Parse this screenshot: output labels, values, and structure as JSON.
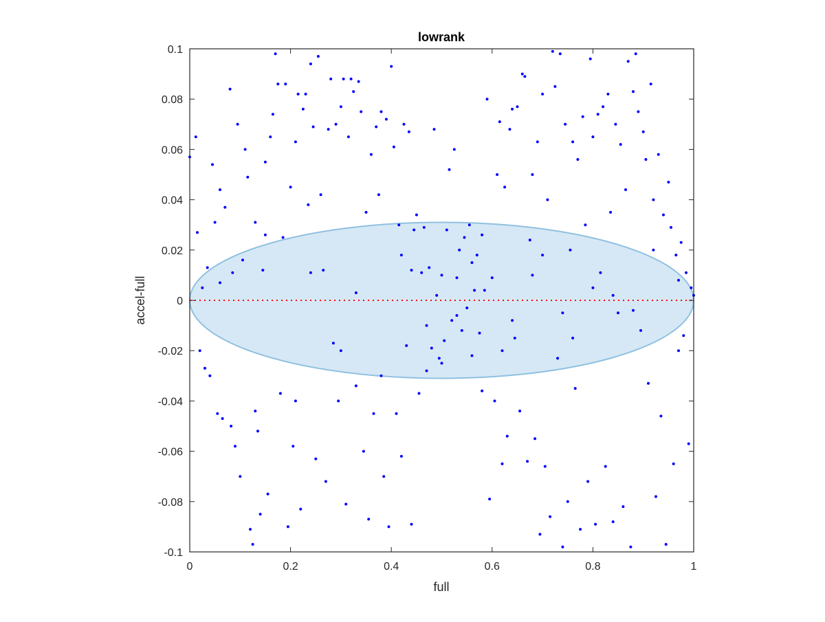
{
  "chart_data": {
    "type": "scatter",
    "title": "lowrank",
    "xlabel": "full",
    "ylabel": "accel-full",
    "xlim": [
      0,
      1
    ],
    "ylim": [
      -0.1,
      0.1
    ],
    "xticks": [
      0,
      0.2,
      0.4,
      0.6,
      0.8,
      1
    ],
    "xtick_labels": [
      "0",
      "0.2",
      "0.4",
      "0.6",
      "0.8",
      "1"
    ],
    "yticks": [
      -0.1,
      -0.08,
      -0.06,
      -0.04,
      -0.02,
      0,
      0.02,
      0.04,
      0.06,
      0.08,
      0.1
    ],
    "ytick_labels": [
      "-0.1",
      "-0.08",
      "-0.06",
      "-0.04",
      "-0.02",
      "0",
      "0.02",
      "0.04",
      "0.06",
      "0.08",
      "0.1"
    ],
    "grid": false,
    "colors": {
      "points": "#0000ff",
      "ellipse_fill": "#d6e8f5",
      "ellipse_stroke": "#8fc0e0",
      "zero_line": "#ff0000",
      "axes": "#262626"
    },
    "ellipse": {
      "center_x": 0.5,
      "center_y": 0.0,
      "half_width_x": 0.5,
      "half_height_y": 0.031
    },
    "zero_line": {
      "y": 0,
      "style": "dotted"
    },
    "points": [
      [
        0.0,
        0.057
      ],
      [
        0.012,
        0.065
      ],
      [
        0.015,
        0.027
      ],
      [
        0.02,
        -0.02
      ],
      [
        0.025,
        0.005
      ],
      [
        0.03,
        -0.027
      ],
      [
        0.035,
        0.013
      ],
      [
        0.04,
        -0.03
      ],
      [
        0.045,
        0.054
      ],
      [
        0.05,
        0.031
      ],
      [
        0.055,
        -0.045
      ],
      [
        0.06,
        0.044
      ],
      [
        0.065,
        -0.047
      ],
      [
        0.07,
        0.037
      ],
      [
        0.08,
        0.084
      ],
      [
        0.082,
        -0.05
      ],
      [
        0.085,
        0.011
      ],
      [
        0.09,
        -0.058
      ],
      [
        0.095,
        0.07
      ],
      [
        0.1,
        -0.07
      ],
      [
        0.105,
        0.016
      ],
      [
        0.11,
        0.06
      ],
      [
        0.115,
        0.049
      ],
      [
        0.12,
        -0.091
      ],
      [
        0.125,
        -0.097
      ],
      [
        0.13,
        0.031
      ],
      [
        0.135,
        -0.052
      ],
      [
        0.14,
        -0.085
      ],
      [
        0.145,
        0.012
      ],
      [
        0.15,
        0.055
      ],
      [
        0.155,
        -0.077
      ],
      [
        0.16,
        0.065
      ],
      [
        0.165,
        0.074
      ],
      [
        0.17,
        0.098
      ],
      [
        0.175,
        0.086
      ],
      [
        0.18,
        -0.037
      ],
      [
        0.185,
        0.025
      ],
      [
        0.19,
        0.086
      ],
      [
        0.195,
        -0.09
      ],
      [
        0.2,
        0.045
      ],
      [
        0.205,
        -0.058
      ],
      [
        0.21,
        0.063
      ],
      [
        0.215,
        0.082
      ],
      [
        0.22,
        -0.083
      ],
      [
        0.225,
        0.076
      ],
      [
        0.23,
        0.082
      ],
      [
        0.235,
        0.038
      ],
      [
        0.24,
        0.094
      ],
      [
        0.245,
        0.069
      ],
      [
        0.25,
        -0.063
      ],
      [
        0.255,
        0.097
      ],
      [
        0.26,
        0.042
      ],
      [
        0.265,
        0.012
      ],
      [
        0.27,
        -0.072
      ],
      [
        0.275,
        0.068
      ],
      [
        0.28,
        0.088
      ],
      [
        0.285,
        -0.017
      ],
      [
        0.29,
        0.07
      ],
      [
        0.295,
        -0.04
      ],
      [
        0.3,
        0.077
      ],
      [
        0.305,
        0.088
      ],
      [
        0.31,
        -0.081
      ],
      [
        0.315,
        0.065
      ],
      [
        0.32,
        0.088
      ],
      [
        0.325,
        0.083
      ],
      [
        0.33,
        -0.034
      ],
      [
        0.335,
        0.087
      ],
      [
        0.34,
        0.075
      ],
      [
        0.345,
        -0.06
      ],
      [
        0.35,
        0.035
      ],
      [
        0.355,
        -0.087
      ],
      [
        0.36,
        0.058
      ],
      [
        0.365,
        -0.045
      ],
      [
        0.37,
        0.069
      ],
      [
        0.375,
        0.042
      ],
      [
        0.38,
        0.075
      ],
      [
        0.385,
        -0.07
      ],
      [
        0.39,
        0.072
      ],
      [
        0.395,
        -0.09
      ],
      [
        0.4,
        0.093
      ],
      [
        0.405,
        0.061
      ],
      [
        0.41,
        -0.045
      ],
      [
        0.415,
        0.03
      ],
      [
        0.42,
        -0.062
      ],
      [
        0.425,
        0.07
      ],
      [
        0.43,
        -0.018
      ],
      [
        0.435,
        0.067
      ],
      [
        0.44,
        -0.089
      ],
      [
        0.445,
        0.028
      ],
      [
        0.45,
        0.034
      ],
      [
        0.455,
        -0.037
      ],
      [
        0.46,
        0.011
      ],
      [
        0.465,
        0.029
      ],
      [
        0.47,
        -0.01
      ],
      [
        0.475,
        0.013
      ],
      [
        0.48,
        -0.019
      ],
      [
        0.485,
        0.068
      ],
      [
        0.49,
        0.002
      ],
      [
        0.495,
        -0.023
      ],
      [
        0.5,
        0.01
      ],
      [
        0.505,
        -0.016
      ],
      [
        0.51,
        0.028
      ],
      [
        0.515,
        0.052
      ],
      [
        0.52,
        -0.008
      ],
      [
        0.525,
        0.06
      ],
      [
        0.53,
        -0.006
      ],
      [
        0.535,
        0.02
      ],
      [
        0.54,
        -0.012
      ],
      [
        0.545,
        0.025
      ],
      [
        0.55,
        -0.003
      ],
      [
        0.555,
        0.03
      ],
      [
        0.56,
        -0.022
      ],
      [
        0.565,
        0.004
      ],
      [
        0.57,
        0.018
      ],
      [
        0.575,
        -0.013
      ],
      [
        0.58,
        -0.036
      ],
      [
        0.585,
        0.004
      ],
      [
        0.59,
        0.08
      ],
      [
        0.595,
        -0.079
      ],
      [
        0.6,
        0.009
      ],
      [
        0.605,
        -0.04
      ],
      [
        0.61,
        0.05
      ],
      [
        0.615,
        0.071
      ],
      [
        0.62,
        -0.065
      ],
      [
        0.625,
        0.045
      ],
      [
        0.63,
        -0.054
      ],
      [
        0.635,
        0.068
      ],
      [
        0.64,
        0.076
      ],
      [
        0.645,
        -0.015
      ],
      [
        0.65,
        0.077
      ],
      [
        0.655,
        -0.044
      ],
      [
        0.66,
        0.09
      ],
      [
        0.665,
        0.089
      ],
      [
        0.67,
        -0.064
      ],
      [
        0.675,
        0.024
      ],
      [
        0.68,
        0.05
      ],
      [
        0.685,
        -0.055
      ],
      [
        0.69,
        0.063
      ],
      [
        0.695,
        -0.093
      ],
      [
        0.7,
        0.082
      ],
      [
        0.705,
        -0.066
      ],
      [
        0.71,
        0.04
      ],
      [
        0.715,
        -0.086
      ],
      [
        0.72,
        0.099
      ],
      [
        0.725,
        0.085
      ],
      [
        0.73,
        -0.023
      ],
      [
        0.735,
        0.098
      ],
      [
        0.74,
        -0.098
      ],
      [
        0.745,
        0.07
      ],
      [
        0.75,
        -0.08
      ],
      [
        0.755,
        0.02
      ],
      [
        0.76,
        0.063
      ],
      [
        0.765,
        -0.035
      ],
      [
        0.77,
        0.056
      ],
      [
        0.775,
        -0.091
      ],
      [
        0.78,
        0.073
      ],
      [
        0.785,
        0.03
      ],
      [
        0.79,
        -0.072
      ],
      [
        0.795,
        0.096
      ],
      [
        0.8,
        0.065
      ],
      [
        0.805,
        -0.089
      ],
      [
        0.81,
        0.074
      ],
      [
        0.815,
        0.011
      ],
      [
        0.82,
        0.077
      ],
      [
        0.825,
        -0.066
      ],
      [
        0.83,
        0.082
      ],
      [
        0.835,
        0.035
      ],
      [
        0.84,
        -0.088
      ],
      [
        0.845,
        0.07
      ],
      [
        0.85,
        -0.005
      ],
      [
        0.855,
        0.062
      ],
      [
        0.86,
        -0.082
      ],
      [
        0.865,
        0.044
      ],
      [
        0.87,
        0.095
      ],
      [
        0.875,
        -0.098
      ],
      [
        0.88,
        0.083
      ],
      [
        0.885,
        0.098
      ],
      [
        0.89,
        0.075
      ],
      [
        0.895,
        -0.012
      ],
      [
        0.9,
        0.067
      ],
      [
        0.905,
        0.056
      ],
      [
        0.91,
        -0.033
      ],
      [
        0.915,
        0.086
      ],
      [
        0.92,
        0.04
      ],
      [
        0.925,
        -0.078
      ],
      [
        0.93,
        0.058
      ],
      [
        0.935,
        -0.046
      ],
      [
        0.94,
        0.034
      ],
      [
        0.945,
        -0.097
      ],
      [
        0.95,
        0.047
      ],
      [
        0.955,
        0.029
      ],
      [
        0.96,
        -0.065
      ],
      [
        0.965,
        0.018
      ],
      [
        0.97,
        -0.02
      ],
      [
        0.975,
        0.023
      ],
      [
        0.98,
        -0.014
      ],
      [
        0.985,
        0.011
      ],
      [
        0.99,
        -0.057
      ],
      [
        0.995,
        0.005
      ],
      [
        1.0,
        0.002
      ],
      [
        0.13,
        -0.044
      ],
      [
        0.21,
        -0.04
      ],
      [
        0.3,
        -0.02
      ],
      [
        0.38,
        -0.03
      ],
      [
        0.44,
        0.012
      ],
      [
        0.5,
        -0.025
      ],
      [
        0.56,
        0.015
      ],
      [
        0.62,
        -0.02
      ],
      [
        0.68,
        0.01
      ],
      [
        0.74,
        -0.005
      ],
      [
        0.8,
        0.005
      ],
      [
        0.88,
        -0.004
      ],
      [
        0.06,
        0.007
      ],
      [
        0.15,
        0.026
      ],
      [
        0.24,
        0.011
      ],
      [
        0.33,
        0.003
      ],
      [
        0.42,
        0.018
      ],
      [
        0.47,
        -0.028
      ],
      [
        0.53,
        0.009
      ],
      [
        0.58,
        0.026
      ],
      [
        0.64,
        -0.008
      ],
      [
        0.7,
        0.018
      ],
      [
        0.76,
        -0.015
      ],
      [
        0.84,
        0.002
      ],
      [
        0.92,
        0.02
      ],
      [
        0.97,
        0.008
      ]
    ]
  }
}
